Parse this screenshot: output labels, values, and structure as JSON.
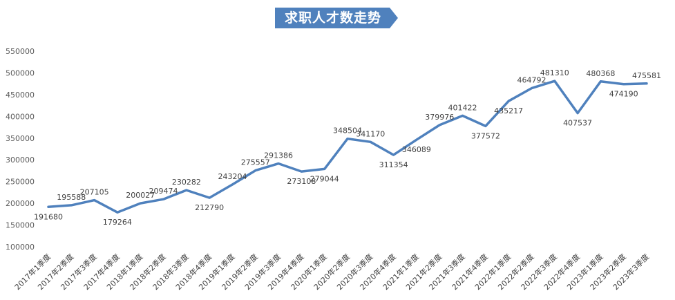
{
  "chart_data": {
    "type": "line",
    "title": "求职人才数走势",
    "xlabel": "",
    "ylabel": "",
    "ylim": [
      100000,
      550000
    ],
    "yticks": [
      100000,
      150000,
      200000,
      250000,
      300000,
      350000,
      400000,
      450000,
      500000,
      550000
    ],
    "ytick_labels": [
      "100000",
      "150000",
      "200000",
      "250000",
      "300000",
      "350000",
      "400000",
      "450000",
      "500000",
      "550000"
    ],
    "grid": false,
    "categories": [
      "2017年1季度",
      "2017年2季度",
      "2017年3季度",
      "2017年4季度",
      "2018年1季度",
      "2018年2季度",
      "2018年3季度",
      "2018年4季度",
      "2019年1季度",
      "2019年2季度",
      "2019年3季度",
      "2019年4季度",
      "2020年1季度",
      "2020年2季度",
      "2020年3季度",
      "2020年4季度",
      "2021年1季度",
      "2021年2季度",
      "2021年3季度",
      "2021年4季度",
      "2022年1季度",
      "2022年2季度",
      "2022年3季度",
      "2022年4季度",
      "2023年1季度",
      "2023年2季度",
      "2023年3季度"
    ],
    "series": [
      {
        "name": "求职人才数",
        "color": "#4f81bd",
        "values": [
          191680,
          195588,
          207105,
          179264,
          200027,
          209474,
          230282,
          212790,
          243204,
          275557,
          291386,
          273108,
          279044,
          348504,
          341170,
          311354,
          346089,
          379976,
          401422,
          377572,
          435217,
          464792,
          481310,
          407537,
          480368,
          474190,
          475581
        ]
      }
    ],
    "data_labels": [
      "191680",
      "195588",
      "207105",
      "179264",
      "200027",
      "209474",
      "230282",
      "212790",
      "243204",
      "275557",
      "291386",
      "273108",
      "279044",
      "348504",
      "341170",
      "311354",
      "346089",
      "379976",
      "401422",
      "377572",
      "435217",
      "464792",
      "481310",
      "407537",
      "480368",
      "474190",
      "475581"
    ]
  },
  "colors": {
    "line": "#4f81bd",
    "banner": "#4f81bd"
  }
}
